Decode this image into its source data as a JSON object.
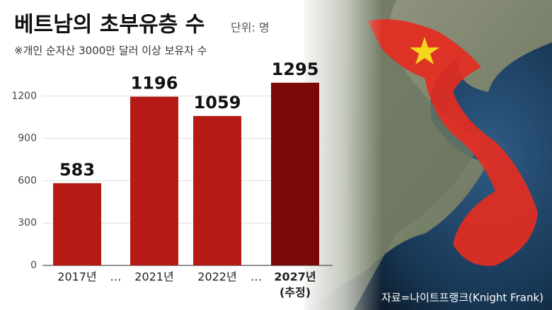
{
  "chart_data": {
    "type": "bar",
    "title": "베트남의 초부유층 수",
    "unit": "단위: 명",
    "subtitle": "※개인 순자산 3000만 달러 이상 보유자 수",
    "source": "자료=나이트프랭크(Knight Frank)",
    "categories": [
      "2017년",
      "2021년",
      "2022년",
      "2027년"
    ],
    "category_notes": [
      null,
      null,
      null,
      "(추정)"
    ],
    "gaps": [
      {
        "after": "2017년",
        "label": "…"
      },
      {
        "after": "2022년",
        "label": "…"
      }
    ],
    "values": [
      583,
      1196,
      1059,
      1295
    ],
    "colors": [
      "#b51a14",
      "#b51a14",
      "#b51a14",
      "#7a0a08"
    ],
    "ylim": [
      0,
      1500
    ],
    "yticks": [
      0,
      300,
      600,
      900,
      1200
    ],
    "grid": true
  }
}
